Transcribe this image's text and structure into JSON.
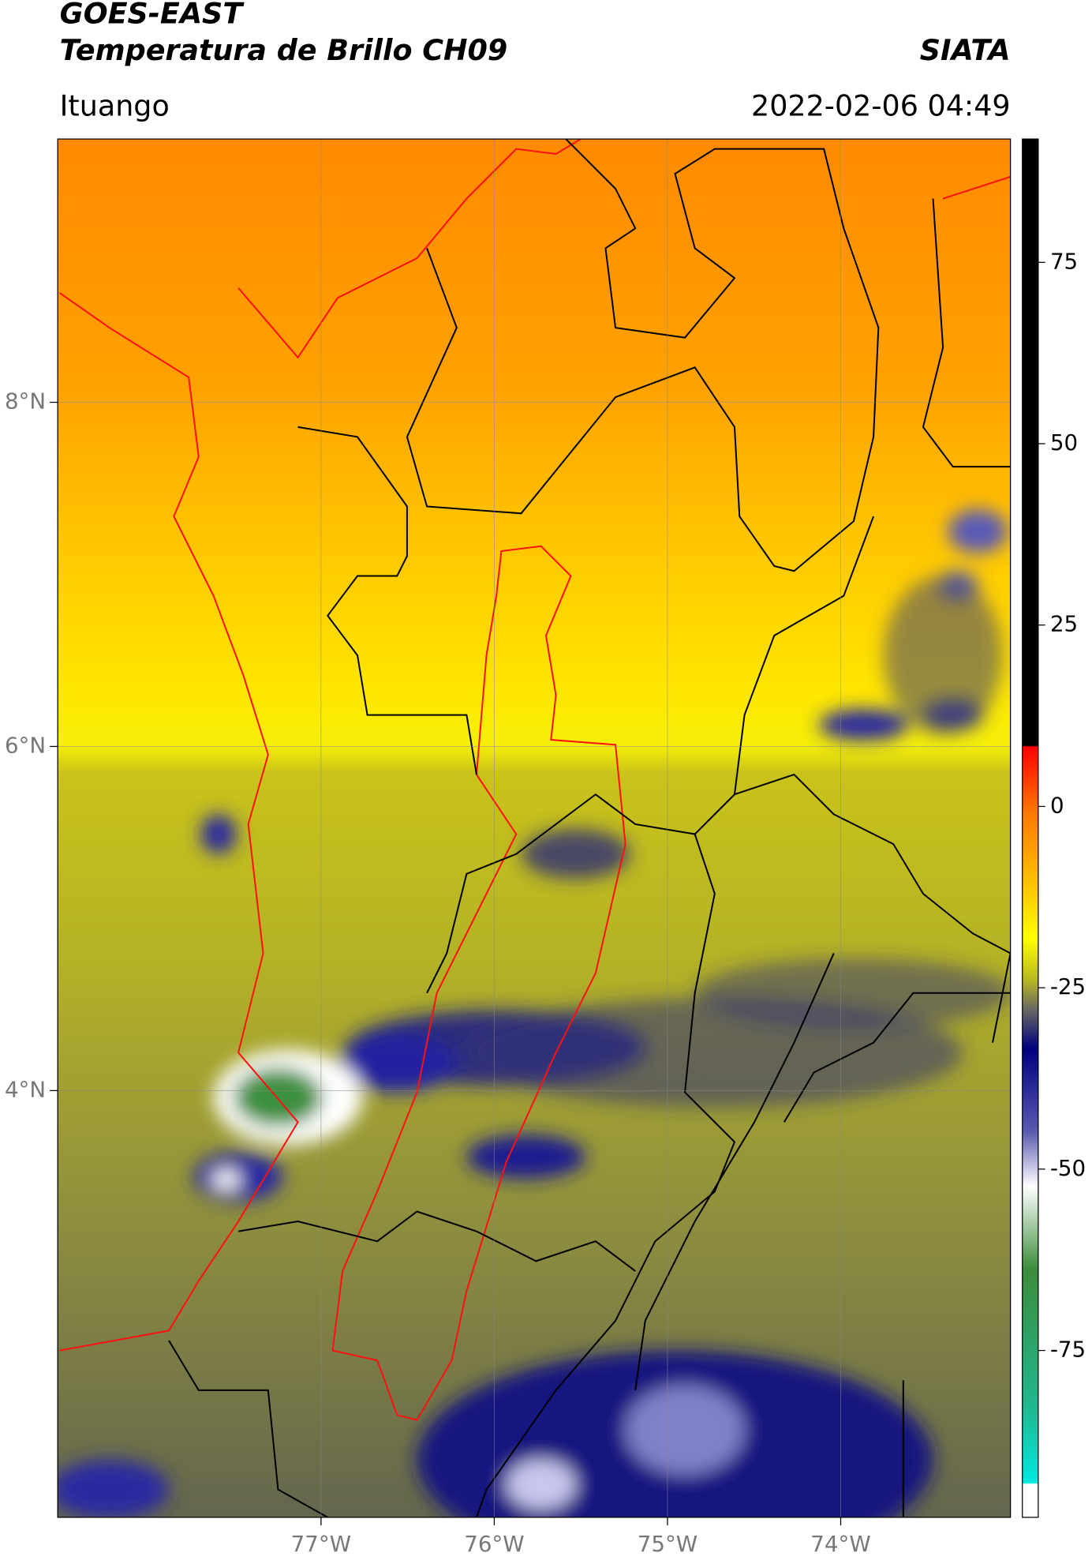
{
  "header": {
    "title": "GOES-EAST",
    "subtitle": "Temperatura de Brillo CH09",
    "source": "SIATA",
    "region": "Ituango",
    "timestamp": "2022-02-06 04:49"
  },
  "map": {
    "xlim": [
      -78.52,
      -73.02
    ],
    "ylim": [
      1.52,
      9.53
    ],
    "xticks": [
      {
        "value": -77,
        "label": "77°W"
      },
      {
        "value": -76,
        "label": "76°W"
      },
      {
        "value": -75,
        "label": "75°W"
      },
      {
        "value": -74,
        "label": "74°W"
      }
    ],
    "yticks": [
      {
        "value": 8,
        "label": "8°N"
      },
      {
        "value": 6,
        "label": "6°N"
      },
      {
        "value": 4,
        "label": "4°N"
      }
    ],
    "grid": true
  },
  "colorbar": {
    "vlim": [
      -98,
      92
    ],
    "ticks": [
      75,
      50,
      25,
      0,
      -25,
      -50,
      -75
    ]
  }
}
